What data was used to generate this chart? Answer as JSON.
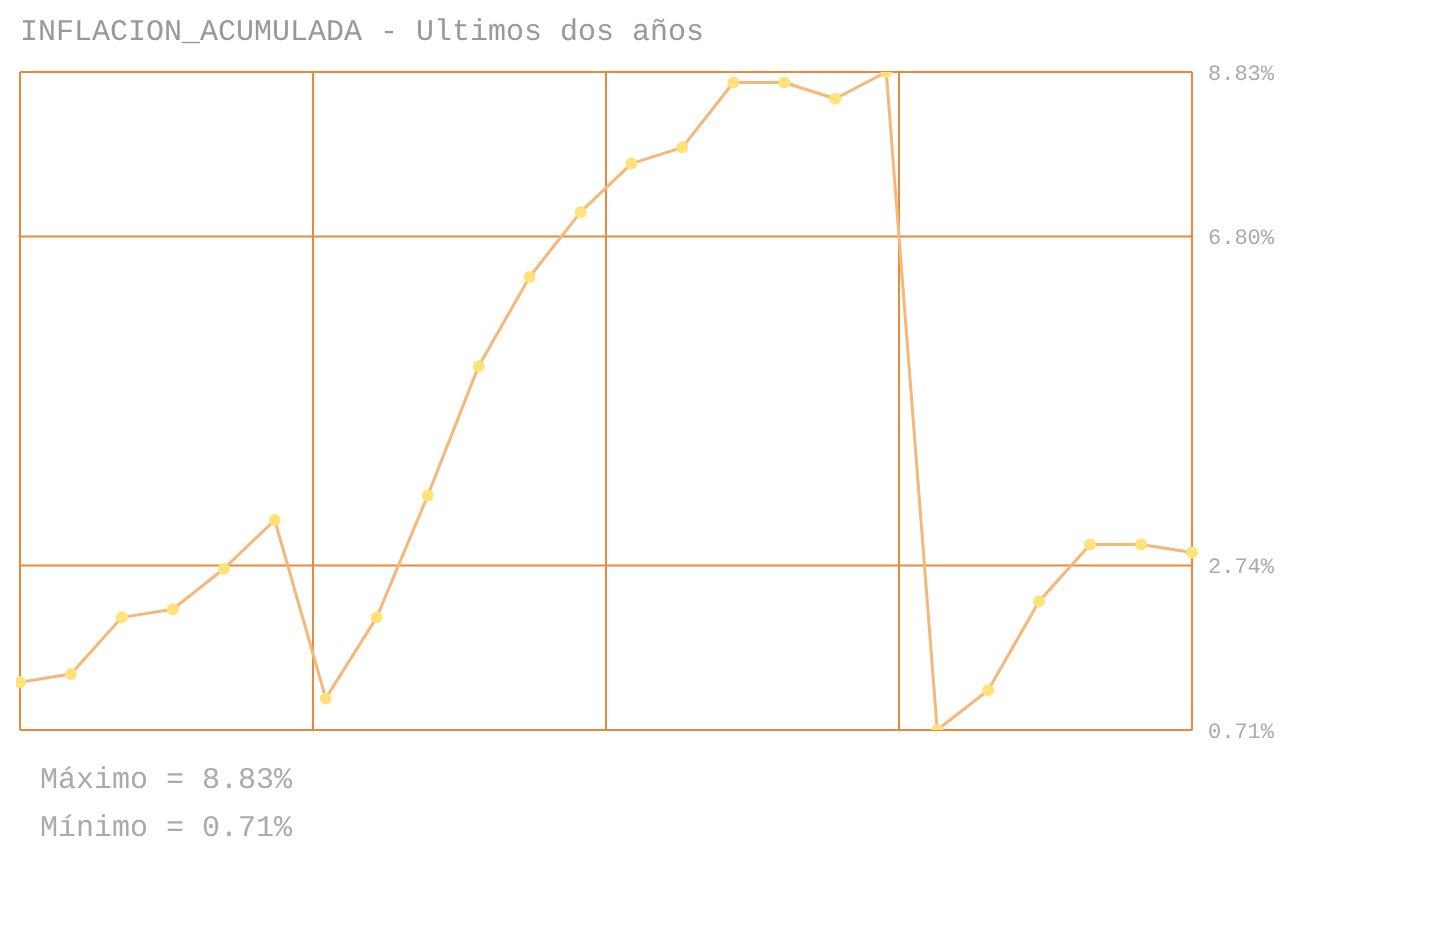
{
  "chart_data": {
    "type": "line",
    "title": "INFLACION_ACUMULADA - Ultimos dos años",
    "categories": [
      null,
      null,
      null,
      null,
      null,
      null,
      null,
      null,
      null,
      null,
      null,
      null,
      null,
      null,
      null,
      null,
      null,
      null,
      null,
      null,
      null,
      null,
      null,
      null
    ],
    "series": [
      {
        "color": "#f6b878",
        "values": [
          1.3,
          1.4,
          2.1,
          2.2,
          2.7,
          3.3,
          1.1,
          2.1,
          3.6,
          5.2,
          6.3,
          7.1,
          7.7,
          7.9,
          8.7,
          8.7,
          8.5,
          8.83,
          0.71,
          1.2,
          2.3,
          3.0,
          3.0,
          2.9
        ]
      }
    ],
    "ylim": [
      0.71,
      8.83
    ],
    "yticks": [
      {
        "value": 0.71,
        "label": "0.71%"
      },
      {
        "value": 2.74,
        "label": "2.74%"
      },
      {
        "value": 6.8,
        "label": "6.80%"
      },
      {
        "value": 8.83,
        "label": "8.83%"
      }
    ],
    "grid": true,
    "tick_labels": "y",
    "marker": "circle",
    "line_style": "solid",
    "annotations": [
      "Máximo = 8.83%",
      "Mínimo = 0.71%"
    ]
  }
}
